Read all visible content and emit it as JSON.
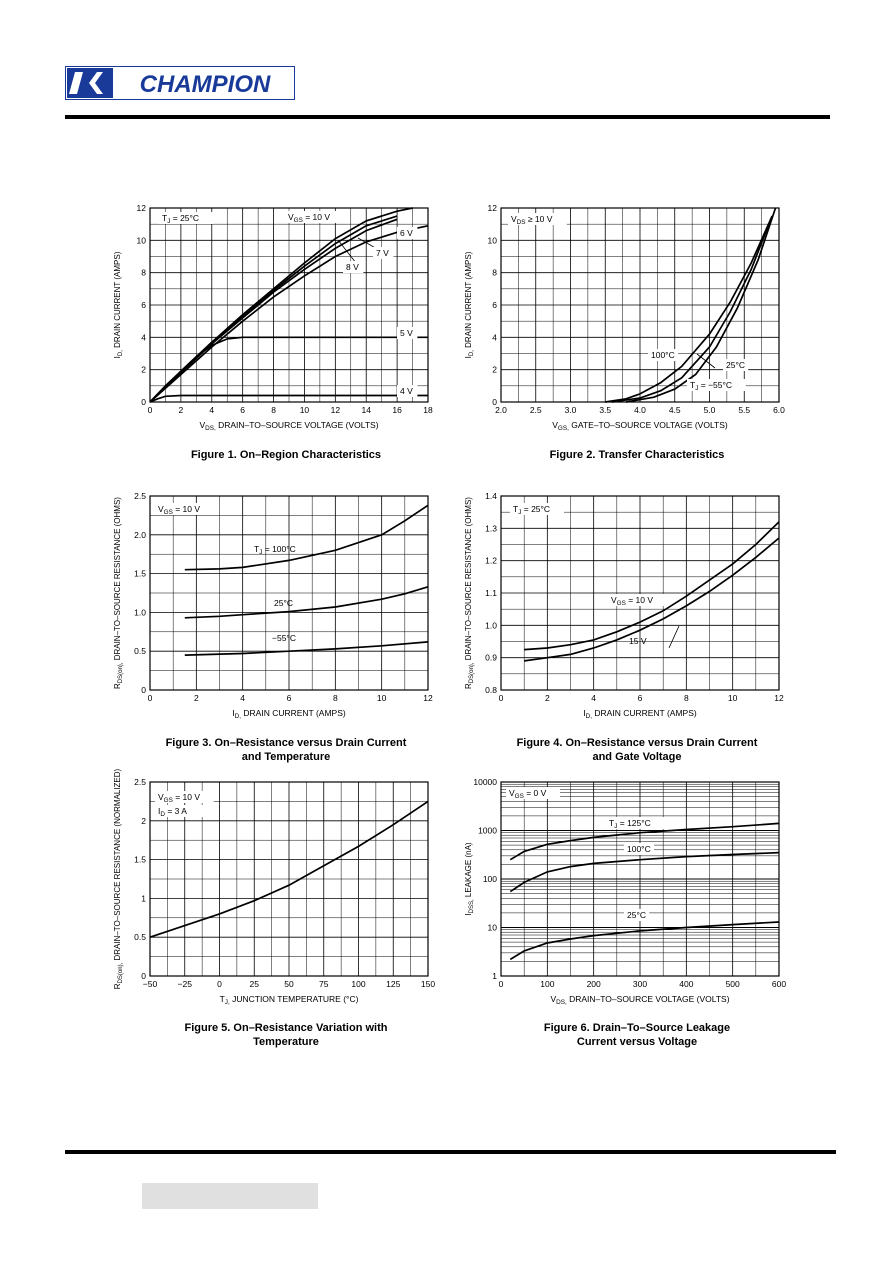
{
  "header": {
    "logo_text": "CHAMPION"
  },
  "chart_data": [
    {
      "id": "fig1",
      "type": "line",
      "caption": [
        "Figure 1. On–Region Characteristics"
      ],
      "xlabel": "V_DS, DRAIN–TO–SOURCE VOLTAGE (VOLTS)",
      "ylabel": "I_D, DRAIN CURRENT (AMPS)",
      "xlim": [
        0,
        18
      ],
      "ylim": [
        0,
        12
      ],
      "xticks": [
        0,
        2,
        4,
        6,
        8,
        10,
        12,
        14,
        16,
        18
      ],
      "yticks": [
        0,
        2,
        4,
        6,
        8,
        10,
        12
      ],
      "annotations": [
        "T_J = 25°C",
        "V_GS = 10 V",
        "7 V",
        "8 V",
        "6 V",
        "5 V",
        "4 V"
      ],
      "series": [
        {
          "name": "V_GS = 10 V",
          "x": [
            0,
            2,
            4,
            6,
            8,
            10,
            12,
            14,
            16,
            17
          ],
          "y": [
            0,
            1.9,
            3.7,
            5.4,
            7.0,
            8.6,
            10.1,
            11.2,
            11.8,
            12
          ]
        },
        {
          "name": "8 V",
          "x": [
            0,
            2,
            4,
            6,
            8,
            10,
            12,
            14,
            16
          ],
          "y": [
            0,
            1.9,
            3.7,
            5.3,
            6.9,
            8.4,
            9.8,
            10.9,
            11.5
          ]
        },
        {
          "name": "7 V",
          "x": [
            0,
            2,
            4,
            6,
            8,
            10,
            12,
            14,
            16
          ],
          "y": [
            0,
            1.8,
            3.6,
            5.2,
            6.8,
            8.2,
            9.5,
            10.6,
            11.3
          ]
        },
        {
          "name": "6 V",
          "x": [
            0,
            2,
            4,
            6,
            8,
            10,
            12,
            14,
            16,
            18
          ],
          "y": [
            0,
            1.7,
            3.4,
            5.0,
            6.5,
            7.8,
            9.0,
            9.9,
            10.5,
            10.9
          ]
        },
        {
          "name": "5 V",
          "x": [
            0,
            1,
            2,
            3,
            4,
            5,
            6,
            10,
            14,
            18
          ],
          "y": [
            0,
            1.0,
            1.9,
            2.8,
            3.5,
            3.9,
            4.0,
            4.0,
            4.0,
            4.0
          ]
        },
        {
          "name": "4 V",
          "x": [
            0,
            0.5,
            1,
            2,
            4,
            8,
            18
          ],
          "y": [
            0,
            0.2,
            0.35,
            0.4,
            0.4,
            0.4,
            0.4
          ]
        }
      ]
    },
    {
      "id": "fig2",
      "type": "line",
      "caption": [
        "Figure 2. Transfer Characteristics"
      ],
      "xlabel": "V_GS, GATE–TO–SOURCE VOLTAGE (VOLTS)",
      "ylabel": "I_D, DRAIN CURRENT (AMPS)",
      "xlim": [
        2.0,
        6.0
      ],
      "ylim": [
        0,
        12
      ],
      "xticks": [
        2.0,
        2.5,
        3.0,
        3.5,
        4.0,
        4.5,
        5.0,
        5.5,
        6.0
      ],
      "xtick_labels": [
        "2.0",
        "2.5",
        "3.0",
        "3.5",
        "4.0",
        "4.5",
        "5.0",
        "5.5",
        "6.0"
      ],
      "yticks": [
        0,
        2,
        4,
        6,
        8,
        10,
        12
      ],
      "annotations": [
        "V_DS ≥ 10 V",
        "100°C",
        "25°C",
        "T_J = −55°C"
      ],
      "series": [
        {
          "name": "100°C",
          "x": [
            3.5,
            3.8,
            4.0,
            4.3,
            4.6,
            5.0,
            5.3,
            5.6,
            5.9
          ],
          "y": [
            0,
            0.2,
            0.5,
            1.2,
            2.2,
            4.2,
            6.2,
            8.6,
            11.5
          ]
        },
        {
          "name": "25°C",
          "x": [
            3.6,
            4.0,
            4.3,
            4.6,
            5.0,
            5.3,
            5.6,
            5.9
          ],
          "y": [
            0,
            0.25,
            0.7,
            1.5,
            3.4,
            5.6,
            8.2,
            11.5
          ]
        },
        {
          "name": "T_J = −55°C",
          "x": [
            3.8,
            4.2,
            4.5,
            4.8,
            5.1,
            5.4,
            5.7,
            5.95
          ],
          "y": [
            0,
            0.3,
            0.8,
            1.7,
            3.4,
            5.8,
            8.8,
            12
          ]
        }
      ]
    },
    {
      "id": "fig3",
      "type": "line",
      "caption": [
        "Figure 3. On–Resistance versus Drain Current",
        "and Temperature"
      ],
      "xlabel": "I_D, DRAIN CURRENT (AMPS)",
      "ylabel": "R_DS(on), DRAIN–TO–SOURCE RESISTANCE (OHMS)",
      "xlim": [
        0,
        12
      ],
      "ylim": [
        0,
        2.5
      ],
      "xticks": [
        0,
        2,
        4,
        6,
        8,
        10,
        12
      ],
      "yticks": [
        0,
        0.5,
        1.0,
        1.5,
        2.0,
        2.5
      ],
      "ytick_labels": [
        "0",
        "0.5",
        "1.0",
        "1.5",
        "2.0",
        "2.5"
      ],
      "annotations": [
        "V_GS = 10 V",
        "T_J = 100°C",
        "25°C",
        "−55°C"
      ],
      "series": [
        {
          "name": "T_J = 100°C",
          "x": [
            1.5,
            3,
            4,
            6,
            8,
            10,
            11,
            12
          ],
          "y": [
            1.55,
            1.56,
            1.58,
            1.67,
            1.8,
            2.0,
            2.18,
            2.38
          ]
        },
        {
          "name": "25°C",
          "x": [
            1.5,
            3,
            4,
            6,
            8,
            10,
            11,
            12
          ],
          "y": [
            0.93,
            0.95,
            0.97,
            1.01,
            1.07,
            1.17,
            1.24,
            1.33
          ]
        },
        {
          "name": "−55°C",
          "x": [
            1.5,
            4,
            6,
            8,
            10,
            12
          ],
          "y": [
            0.45,
            0.47,
            0.5,
            0.53,
            0.57,
            0.62
          ]
        }
      ]
    },
    {
      "id": "fig4",
      "type": "line",
      "caption": [
        "Figure 4. On–Resistance versus Drain Current",
        "and Gate Voltage"
      ],
      "xlabel": "I_D, DRAIN CURRENT (AMPS)",
      "ylabel": "R_DS(on), DRAIN–TO–SOURCE RESISTANCE (OHMS)",
      "xlim": [
        0,
        12
      ],
      "ylim": [
        0.8,
        1.4
      ],
      "xticks": [
        0,
        2,
        4,
        6,
        8,
        10,
        12
      ],
      "yticks": [
        0.8,
        0.9,
        1.0,
        1.1,
        1.2,
        1.3,
        1.4
      ],
      "ytick_labels": [
        "0.8",
        "0.9",
        "1.0",
        "1.1",
        "1.2",
        "1.3",
        "1.4"
      ],
      "annotations": [
        "T_J = 25°C",
        "V_GS = 10 V",
        "15 V"
      ],
      "series": [
        {
          "name": "V_GS = 10 V",
          "x": [
            1,
            2,
            3,
            4,
            5,
            6,
            7,
            8,
            9,
            10,
            11,
            12
          ],
          "y": [
            0.925,
            0.93,
            0.94,
            0.955,
            0.98,
            1.01,
            1.045,
            1.09,
            1.14,
            1.19,
            1.25,
            1.32
          ]
        },
        {
          "name": "15 V",
          "x": [
            1,
            2,
            3,
            4,
            5,
            6,
            7,
            8,
            9,
            10,
            11,
            12
          ],
          "y": [
            0.89,
            0.9,
            0.91,
            0.93,
            0.955,
            0.985,
            1.02,
            1.06,
            1.105,
            1.155,
            1.21,
            1.27
          ]
        }
      ]
    },
    {
      "id": "fig5",
      "type": "line",
      "caption": [
        "Figure 5. On–Resistance Variation with",
        "Temperature"
      ],
      "xlabel": "T_J, JUNCTION TEMPERATURE (°C)",
      "ylabel": "R_DS(on), DRAIN–TO–SOURCE RESISTANCE (NORMALIZED)",
      "xlim": [
        -50,
        150
      ],
      "ylim": [
        0,
        2.5
      ],
      "xticks": [
        -50,
        -25,
        0,
        25,
        50,
        75,
        100,
        125,
        150
      ],
      "xtick_labels": [
        "−50",
        "−25",
        "0",
        "25",
        "50",
        "75",
        "100",
        "125",
        "150"
      ],
      "yticks": [
        0,
        0.5,
        1,
        1.5,
        2,
        2.5
      ],
      "annotations": [
        "V_GS = 10 V",
        "I_D = 3 A"
      ],
      "series": [
        {
          "name": "",
          "x": [
            -50,
            -25,
            0,
            25,
            50,
            75,
            100,
            125,
            150
          ],
          "y": [
            0.5,
            0.65,
            0.8,
            0.97,
            1.17,
            1.42,
            1.67,
            1.95,
            2.25
          ]
        }
      ]
    },
    {
      "id": "fig6",
      "type": "line",
      "yscale": "log",
      "caption": [
        "Figure 6. Drain–To–Source Leakage",
        "Current versus Voltage"
      ],
      "xlabel": "V_DS, DRAIN–TO–SOURCE VOLTAGE (VOLTS)",
      "ylabel": "I_DSS, LEAKAGE (nA)",
      "xlim": [
        0,
        600
      ],
      "ylim": [
        1,
        10000
      ],
      "xticks": [
        0,
        100,
        200,
        300,
        400,
        500,
        600
      ],
      "yticks": [
        1,
        10,
        100,
        1000,
        10000
      ],
      "annotations": [
        "V_GS = 0 V",
        "T_J = 125°C",
        "100°C",
        "25°C"
      ],
      "series": [
        {
          "name": "T_J = 125°C",
          "x": [
            20,
            50,
            100,
            150,
            200,
            300,
            400,
            500,
            600
          ],
          "y": [
            250,
            370,
            520,
            620,
            720,
            900,
            1050,
            1200,
            1400
          ]
        },
        {
          "name": "100°C",
          "x": [
            20,
            50,
            100,
            150,
            200,
            300,
            400,
            500,
            600
          ],
          "y": [
            55,
            85,
            140,
            180,
            210,
            250,
            290,
            320,
            350
          ]
        },
        {
          "name": "25°C",
          "x": [
            20,
            50,
            100,
            150,
            200,
            300,
            400,
            500,
            600
          ],
          "y": [
            2.2,
            3.3,
            4.8,
            5.8,
            6.8,
            8.5,
            10,
            11.5,
            13
          ]
        }
      ]
    }
  ]
}
